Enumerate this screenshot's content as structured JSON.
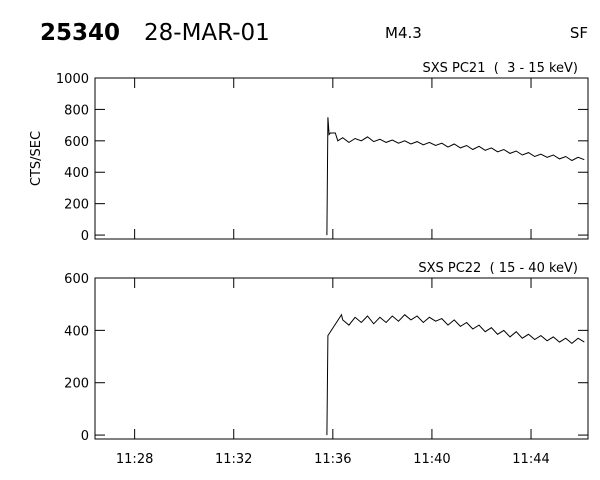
{
  "header": {
    "id": "25340",
    "date": "28-MAR-01",
    "class": "M4.3",
    "station": "SF"
  },
  "chart_data": [
    {
      "type": "line",
      "title": "SXS PC21  (  3 - 15 keV)",
      "ylabel": "CTS/SEC",
      "color": "#000000",
      "x": [
        695.76,
        695.8,
        695.85,
        695.9,
        696.1,
        696.2,
        696.4,
        696.65,
        696.9,
        697.15,
        697.4,
        697.65,
        697.9,
        698.15,
        698.4,
        698.65,
        698.9,
        699.15,
        699.4,
        699.65,
        699.9,
        700.15,
        700.4,
        700.65,
        700.9,
        701.15,
        701.4,
        701.65,
        701.9,
        702.15,
        702.4,
        702.65,
        702.9,
        703.15,
        703.4,
        703.65,
        703.9,
        704.15,
        704.4,
        704.65,
        704.9,
        705.15,
        705.4,
        705.65,
        705.9,
        706.15
      ],
      "values": [
        0,
        750,
        640,
        650,
        650,
        600,
        620,
        590,
        615,
        600,
        625,
        595,
        610,
        590,
        605,
        585,
        600,
        580,
        595,
        575,
        590,
        570,
        585,
        560,
        580,
        555,
        570,
        545,
        565,
        540,
        555,
        530,
        545,
        520,
        535,
        510,
        525,
        500,
        515,
        495,
        510,
        485,
        500,
        475,
        495,
        480
      ],
      "ylim": [
        -25,
        1000
      ],
      "yticks": [
        0,
        200,
        400,
        600,
        800,
        1000
      ],
      "xlim": [
        686.4,
        706.3
      ]
    },
    {
      "type": "line",
      "title": "SXS PC22  ( 15 - 40 keV)",
      "color": "#000000",
      "x": [
        695.76,
        695.8,
        696.35,
        696.4,
        696.65,
        696.9,
        697.15,
        697.4,
        697.65,
        697.9,
        698.15,
        698.4,
        698.65,
        698.9,
        699.15,
        699.4,
        699.65,
        699.9,
        700.15,
        700.4,
        700.65,
        700.9,
        701.15,
        701.4,
        701.65,
        701.9,
        702.15,
        702.4,
        702.65,
        702.9,
        703.15,
        703.4,
        703.65,
        703.9,
        704.15,
        704.4,
        704.65,
        704.9,
        705.15,
        705.4,
        705.65,
        705.9,
        706.15
      ],
      "values": [
        0,
        380,
        460,
        440,
        420,
        450,
        430,
        455,
        425,
        450,
        430,
        455,
        435,
        460,
        440,
        455,
        430,
        450,
        435,
        445,
        420,
        440,
        415,
        430,
        405,
        420,
        395,
        410,
        385,
        400,
        375,
        395,
        370,
        385,
        365,
        380,
        360,
        375,
        355,
        370,
        350,
        370,
        355
      ],
      "ylim": [
        -15,
        600
      ],
      "yticks": [
        0,
        200,
        400,
        600
      ],
      "xlim": [
        686.4,
        706.3
      ],
      "xticks": [
        {
          "value": 688,
          "label": "11:28"
        },
        {
          "value": 692,
          "label": "11:32"
        },
        {
          "value": 696,
          "label": "11:36"
        },
        {
          "value": 700,
          "label": "11:40"
        },
        {
          "value": 704,
          "label": "11:44"
        }
      ]
    }
  ]
}
